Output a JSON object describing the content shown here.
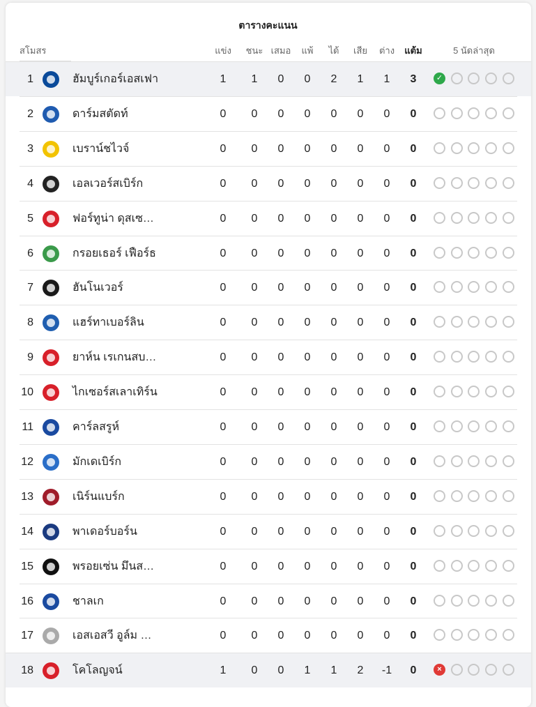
{
  "title": "ตารางคะแนน",
  "headers": {
    "club": "สโมสร",
    "played": "แข่ง",
    "won": "ชนะ",
    "drawn": "เสมอ",
    "lost": "แพ้",
    "gf": "ได้",
    "ga": "เสีย",
    "gd": "ต่าง",
    "pts": "แต้ม",
    "form": "5 นัดล่าสุด"
  },
  "colors": {
    "win": "#2ea84a",
    "loss": "#e03a36",
    "highlight": "#f0f1f4"
  },
  "rows": [
    {
      "rank": "1",
      "name": "ฮัมบูร์เกอร์เอสเฟา",
      "logo": "#0a4a9a",
      "p": "1",
      "w": "1",
      "d": "0",
      "l": "0",
      "gf": "2",
      "ga": "1",
      "gd": "1",
      "pts": "3",
      "form": [
        "W",
        "",
        "",
        "",
        ""
      ],
      "hl": true
    },
    {
      "rank": "2",
      "name": "ดาร์มสตัดท์",
      "logo": "#1f5bb0",
      "p": "0",
      "w": "0",
      "d": "0",
      "l": "0",
      "gf": "0",
      "ga": "0",
      "gd": "0",
      "pts": "0",
      "form": [
        "",
        "",
        "",
        "",
        ""
      ]
    },
    {
      "rank": "3",
      "name": "เบราน์ชไวจ์",
      "logo": "#f2c300",
      "p": "0",
      "w": "0",
      "d": "0",
      "l": "0",
      "gf": "0",
      "ga": "0",
      "gd": "0",
      "pts": "0",
      "form": [
        "",
        "",
        "",
        "",
        ""
      ]
    },
    {
      "rank": "4",
      "name": "เอลเวอร์สเบิร์ก",
      "logo": "#222222",
      "p": "0",
      "w": "0",
      "d": "0",
      "l": "0",
      "gf": "0",
      "ga": "0",
      "gd": "0",
      "pts": "0",
      "form": [
        "",
        "",
        "",
        "",
        ""
      ]
    },
    {
      "rank": "5",
      "name": "ฟอร์ทูน่า ดุสเซ…",
      "logo": "#d8202a",
      "p": "0",
      "w": "0",
      "d": "0",
      "l": "0",
      "gf": "0",
      "ga": "0",
      "gd": "0",
      "pts": "0",
      "form": [
        "",
        "",
        "",
        "",
        ""
      ]
    },
    {
      "rank": "6",
      "name": "กรอยเธอร์ เฟือร์ธ",
      "logo": "#3a9a4a",
      "p": "0",
      "w": "0",
      "d": "0",
      "l": "0",
      "gf": "0",
      "ga": "0",
      "gd": "0",
      "pts": "0",
      "form": [
        "",
        "",
        "",
        "",
        ""
      ]
    },
    {
      "rank": "7",
      "name": "ฮันโนเวอร์",
      "logo": "#1a1a1a",
      "p": "0",
      "w": "0",
      "d": "0",
      "l": "0",
      "gf": "0",
      "ga": "0",
      "gd": "0",
      "pts": "0",
      "form": [
        "",
        "",
        "",
        "",
        ""
      ]
    },
    {
      "rank": "8",
      "name": "แฮร์ทาเบอร์ลิน",
      "logo": "#1f5eb0",
      "p": "0",
      "w": "0",
      "d": "0",
      "l": "0",
      "gf": "0",
      "ga": "0",
      "gd": "0",
      "pts": "0",
      "form": [
        "",
        "",
        "",
        "",
        ""
      ]
    },
    {
      "rank": "9",
      "name": "ยาห์น เรเกนสบ…",
      "logo": "#d8202a",
      "p": "0",
      "w": "0",
      "d": "0",
      "l": "0",
      "gf": "0",
      "ga": "0",
      "gd": "0",
      "pts": "0",
      "form": [
        "",
        "",
        "",
        "",
        ""
      ]
    },
    {
      "rank": "10",
      "name": "ไกเซอร์สเลาเทิร์น",
      "logo": "#d8202a",
      "p": "0",
      "w": "0",
      "d": "0",
      "l": "0",
      "gf": "0",
      "ga": "0",
      "gd": "0",
      "pts": "0",
      "form": [
        "",
        "",
        "",
        "",
        ""
      ]
    },
    {
      "rank": "11",
      "name": "คาร์ลสรูห์",
      "logo": "#1a4aa0",
      "p": "0",
      "w": "0",
      "d": "0",
      "l": "0",
      "gf": "0",
      "ga": "0",
      "gd": "0",
      "pts": "0",
      "form": [
        "",
        "",
        "",
        "",
        ""
      ]
    },
    {
      "rank": "12",
      "name": "มักเดเบิร์ก",
      "logo": "#2a6ec8",
      "p": "0",
      "w": "0",
      "d": "0",
      "l": "0",
      "gf": "0",
      "ga": "0",
      "gd": "0",
      "pts": "0",
      "form": [
        "",
        "",
        "",
        "",
        ""
      ]
    },
    {
      "rank": "13",
      "name": "เนิร์นแบร์ก",
      "logo": "#a01c2a",
      "p": "0",
      "w": "0",
      "d": "0",
      "l": "0",
      "gf": "0",
      "ga": "0",
      "gd": "0",
      "pts": "0",
      "form": [
        "",
        "",
        "",
        "",
        ""
      ]
    },
    {
      "rank": "14",
      "name": "พาเดอร์บอร์น",
      "logo": "#1a3a80",
      "p": "0",
      "w": "0",
      "d": "0",
      "l": "0",
      "gf": "0",
      "ga": "0",
      "gd": "0",
      "pts": "0",
      "form": [
        "",
        "",
        "",
        "",
        ""
      ]
    },
    {
      "rank": "15",
      "name": "พรอยเซ่น มึนส…",
      "logo": "#111111",
      "p": "0",
      "w": "0",
      "d": "0",
      "l": "0",
      "gf": "0",
      "ga": "0",
      "gd": "0",
      "pts": "0",
      "form": [
        "",
        "",
        "",
        "",
        ""
      ]
    },
    {
      "rank": "16",
      "name": "ชาลเก",
      "logo": "#1a4aa0",
      "p": "0",
      "w": "0",
      "d": "0",
      "l": "0",
      "gf": "0",
      "ga": "0",
      "gd": "0",
      "pts": "0",
      "form": [
        "",
        "",
        "",
        "",
        ""
      ]
    },
    {
      "rank": "17",
      "name": "เอสเอสวี อูล์ม …",
      "logo": "#aaaaaa",
      "p": "0",
      "w": "0",
      "d": "0",
      "l": "0",
      "gf": "0",
      "ga": "0",
      "gd": "0",
      "pts": "0",
      "form": [
        "",
        "",
        "",
        "",
        ""
      ]
    },
    {
      "rank": "18",
      "name": "โคโลญจน์",
      "logo": "#d8202a",
      "p": "1",
      "w": "0",
      "d": "0",
      "l": "1",
      "gf": "1",
      "ga": "2",
      "gd": "-1",
      "pts": "0",
      "form": [
        "L",
        "",
        "",
        "",
        ""
      ],
      "hl": true
    }
  ]
}
